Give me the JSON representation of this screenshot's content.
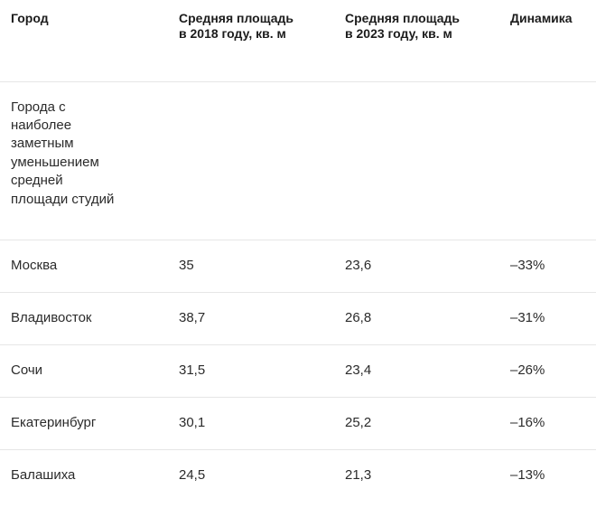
{
  "table": {
    "headers": [
      "Город",
      "Средняя площадь в 2018 году, кв. м",
      "Средняя площадь в 2023 году, кв. м",
      "Динамика"
    ],
    "section_label": "Города с наиболее заметным уменьшением средней площади студий",
    "rows": [
      {
        "city": "Москва",
        "area_2018": "35",
        "area_2023": "23,6",
        "change": "–33%"
      },
      {
        "city": "Владивосток",
        "area_2018": "38,7",
        "area_2023": "26,8",
        "change": "–31%"
      },
      {
        "city": "Сочи",
        "area_2018": "31,5",
        "area_2023": "23,4",
        "change": "–26%"
      },
      {
        "city": "Екатеринбург",
        "area_2018": "30,1",
        "area_2023": "25,2",
        "change": "–16%"
      },
      {
        "city": "Балашиха",
        "area_2018": "24,5",
        "area_2023": "21,3",
        "change": "–13%"
      }
    ]
  }
}
